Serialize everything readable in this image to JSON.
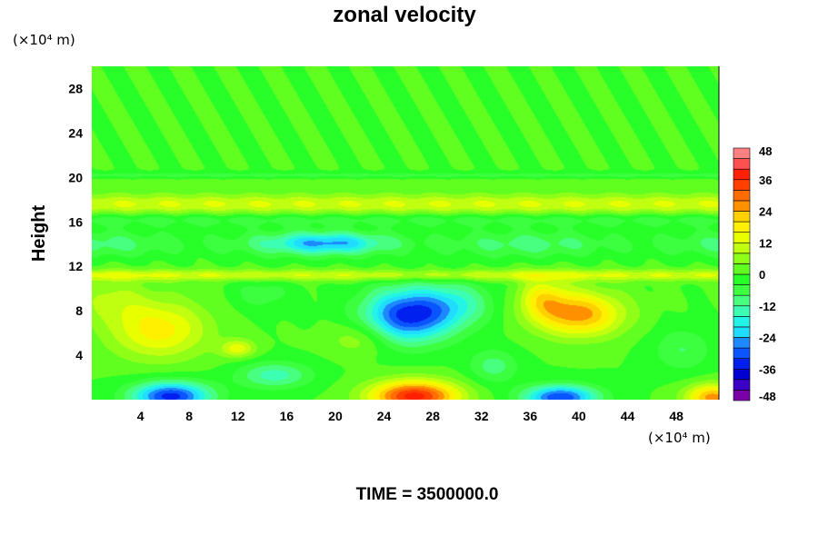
{
  "chart_data": {
    "type": "heatmap",
    "title": "zonal velocity",
    "xlabel": "",
    "ylabel": "Height",
    "x_unit": "(×10⁴ m)",
    "y_unit": "(×10⁴ m)",
    "xlim": [
      0,
      51.5
    ],
    "ylim": [
      0,
      30
    ],
    "x_ticks": [
      4,
      8,
      12,
      16,
      20,
      24,
      28,
      32,
      36,
      40,
      44,
      48
    ],
    "y_ticks": [
      4,
      8,
      12,
      16,
      20,
      24,
      28
    ],
    "colorbar": {
      "range": [
        -48,
        48
      ],
      "step": 4,
      "ticks": [
        48,
        36,
        24,
        12,
        0,
        -12,
        -24,
        -36,
        -48
      ],
      "colors": [
        "#7a00a8",
        "#3c00c8",
        "#0000d0",
        "#0020f0",
        "#0a55ff",
        "#1e88ff",
        "#28b4ff",
        "#20dcff",
        "#22f5e6",
        "#3cffb4",
        "#48ff80",
        "#3cff40",
        "#28ff28",
        "#60ff20",
        "#90ff18",
        "#c0ff10",
        "#e8ff00",
        "#fff000",
        "#ffd000",
        "#ffb000",
        "#ff9000",
        "#ff6c00",
        "#ff4000",
        "#ff2000",
        "#ff5050",
        "#ff8080"
      ]
    },
    "features": [
      {
        "x": 6.5,
        "y": 6.2,
        "value": 18
      },
      {
        "x": 20,
        "y": 14.2,
        "value": -26
      },
      {
        "x": 26.5,
        "y": 7.2,
        "value": -36
      },
      {
        "x": 40.5,
        "y": 7.6,
        "value": 28
      },
      {
        "x": 26.5,
        "y": 0.6,
        "value": 36
      },
      {
        "x": 6.5,
        "y": 0.5,
        "value": -34
      },
      {
        "x": 38.5,
        "y": 0.4,
        "value": -34
      },
      {
        "x": 49.5,
        "y": 0.4,
        "value": 24
      },
      {
        "x": 11.5,
        "y": 4.6,
        "value": 18
      },
      {
        "x": 25,
        "y": 17.5,
        "value": 14
      }
    ],
    "footer": "TIME = 3500000.0"
  }
}
